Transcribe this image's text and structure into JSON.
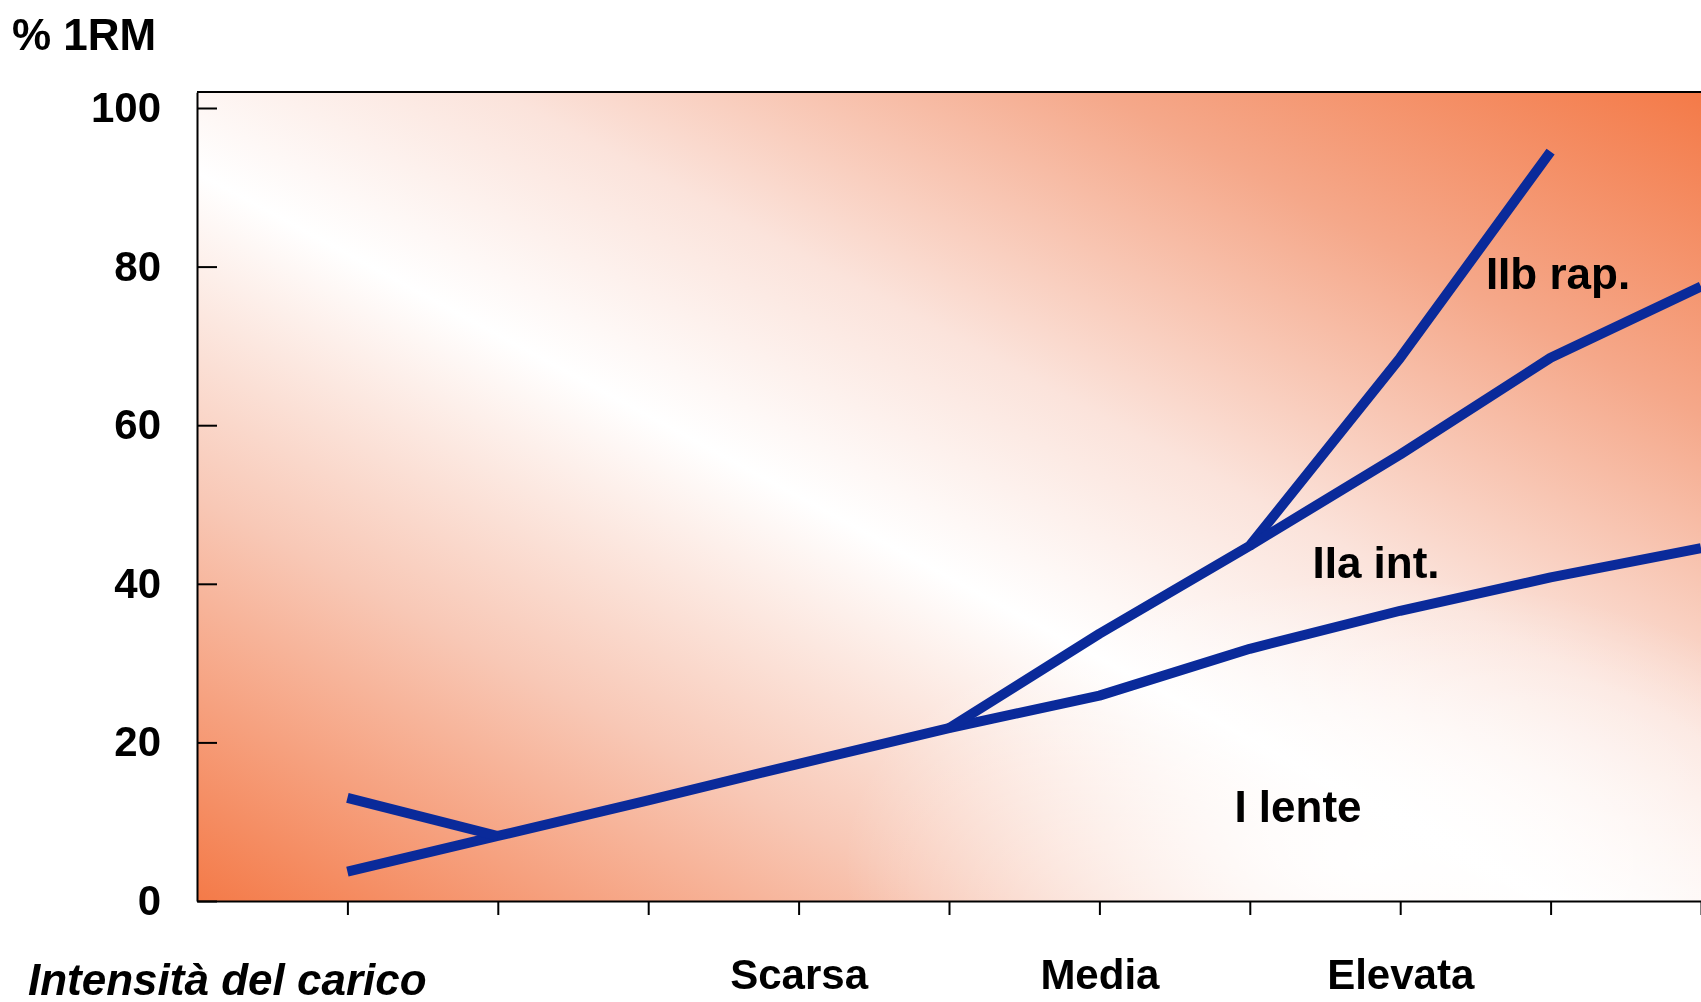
{
  "chart_data": {
    "type": "line",
    "ylabel": "% 1RM",
    "xlabel": "Intensità del carico",
    "categories": [
      null,
      null,
      null,
      "Scarsa",
      null,
      "Media",
      null,
      "Elevata",
      null,
      null
    ],
    "ylim": [
      0,
      102
    ],
    "yticks": [
      0,
      20,
      40,
      60,
      80,
      100
    ],
    "series": [
      {
        "color": "#0a2a9a",
        "values": [
          3.7,
          8.2,
          12.7,
          17.3,
          21.8,
          25.9,
          31.8,
          36.6,
          40.8,
          44.5
        ]
      },
      {
        "color": "#0a2a9a",
        "values": [
          13.0,
          8.2,
          null,
          null,
          null,
          null,
          null,
          null,
          null,
          null
        ]
      },
      {
        "color": "#0a2a9a",
        "values": [
          null,
          null,
          null,
          null,
          21.8,
          33.7,
          44.8,
          68.5,
          94.5,
          null
        ]
      },
      {
        "color": "#0a2a9a",
        "values": [
          null,
          null,
          null,
          null,
          null,
          null,
          44.8,
          56.3,
          68.5,
          77.5
        ]
      }
    ],
    "annotations": [
      "IIb rap.",
      "IIa int.",
      "I lente"
    ],
    "grid": false,
    "marker": "none",
    "line_style": "solid"
  }
}
